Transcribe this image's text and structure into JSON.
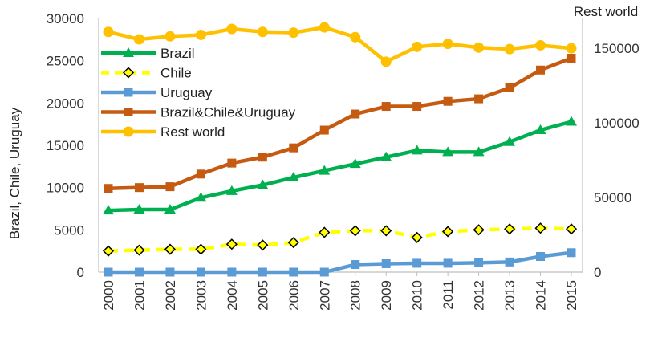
{
  "chart_data": {
    "type": "line",
    "categories": [
      "2000",
      "2001",
      "2002",
      "2003",
      "2004",
      "2005",
      "2006",
      "2007",
      "2008",
      "2009",
      "2010",
      "2011",
      "2012",
      "2013",
      "2014",
      "2015"
    ],
    "ylabel": "Brazil, Chile, Uruguay",
    "y2label": "Rest world",
    "ylim": [
      0,
      30000
    ],
    "y2lim": [
      0,
      170000
    ],
    "yticks": [
      "0",
      "5000",
      "10000",
      "15000",
      "20000",
      "25000",
      "30000"
    ],
    "y2ticks": [
      "0",
      "50000",
      "100000",
      "150000"
    ],
    "grid": false,
    "legend_position": "top-left",
    "series": [
      {
        "name": "Brazil",
        "axis": "left",
        "color": "#00b050",
        "marker": "triangle",
        "dashed": false,
        "values": [
          7300,
          7400,
          7400,
          8800,
          9600,
          10300,
          11200,
          12000,
          12800,
          13600,
          14400,
          14200,
          14200,
          15400,
          16800,
          17800
        ]
      },
      {
        "name": "Chile",
        "axis": "left",
        "color": "#ffff00",
        "marker": "diamond",
        "dashed": true,
        "values": [
          2500,
          2600,
          2700,
          2700,
          3300,
          3200,
          3500,
          4700,
          4900,
          4900,
          4100,
          4800,
          5000,
          5100,
          5200,
          5100
        ]
      },
      {
        "name": "Uruguay",
        "axis": "left",
        "color": "#5b9bd5",
        "marker": "square",
        "dashed": false,
        "values": [
          0,
          0,
          0,
          0,
          0,
          0,
          0,
          0,
          900,
          1000,
          1050,
          1050,
          1100,
          1200,
          1850,
          2300
        ]
      },
      {
        "name": "Brazil&Chile&Uruguay",
        "axis": "left",
        "color": "#c55a11",
        "marker": "square",
        "dashed": false,
        "values": [
          9900,
          10000,
          10100,
          11600,
          12900,
          13600,
          14700,
          16800,
          18700,
          19600,
          19600,
          20200,
          20500,
          21800,
          23900,
          25300
        ]
      },
      {
        "name": "Rest world",
        "axis": "right",
        "color": "#ffc000",
        "marker": "circle",
        "dashed": false,
        "values": [
          161000,
          156000,
          158000,
          159000,
          163000,
          161000,
          160500,
          164000,
          157500,
          141000,
          151000,
          153000,
          150500,
          149500,
          152000,
          150000
        ]
      }
    ]
  }
}
